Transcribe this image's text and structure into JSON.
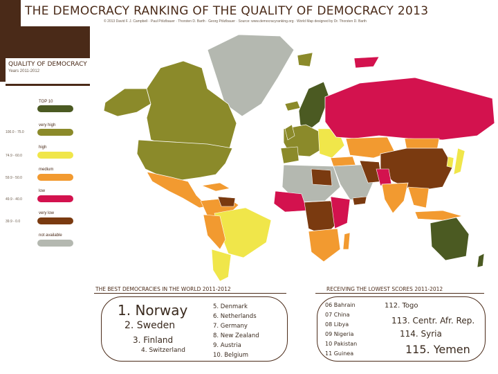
{
  "header": {
    "title": "THE DEMOCRACY RANKING OF THE QUALITY OF DEMOCRACY 2013",
    "subtitle": "© 2013 David F. J. Campbell · Paul Pölzlbauer · Thorsten D. Barth · Georg Pölzlbauer · Source: www.democracyranking.org · World Map designed by Dr. Thorsten D. Barth"
  },
  "legend": {
    "title": "QUALITY OF DEMOCRACY",
    "years": "Years 2011-2012",
    "items": [
      {
        "label": "TOP 10",
        "range": "",
        "color": "#4b5a22"
      },
      {
        "label": "very high",
        "range": "100.0 - 75.0",
        "color": "#8b8a2a"
      },
      {
        "label": "high",
        "range": "74.9 - 60.0",
        "color": "#f0e64a"
      },
      {
        "label": "medium",
        "range": "59.9 - 50.0",
        "color": "#f29a30"
      },
      {
        "label": "low",
        "range": "49.9 - 40.0",
        "color": "#d3124e"
      },
      {
        "label": "very low",
        "range": "39.9 - 0.0",
        "color": "#7a3a10"
      },
      {
        "label": "not available",
        "range": "",
        "color": "#b4b8b0"
      }
    ]
  },
  "best": {
    "title": "THE BEST DEMOCRACIES IN THE WORLD 2011-2012",
    "items": [
      "1. Norway",
      "2. Sweden",
      "3. Finland",
      "4. Switzerland",
      "5. Denmark",
      "6. Netherlands",
      "7. Germany",
      "8. New Zealand",
      "9. Austria",
      "10. Belgium"
    ]
  },
  "lowest": {
    "title": "RECEIVING THE LOWEST SCORES 2011-2012",
    "items": [
      "06 Bahrain",
      "07 China",
      "08 Libya",
      "09 Nigeria",
      "10 Pakistan",
      "11 Guinea",
      "112. Togo",
      "113. Centr. Afr. Rep.",
      "114. Syria",
      "115. Yemen"
    ]
  }
}
